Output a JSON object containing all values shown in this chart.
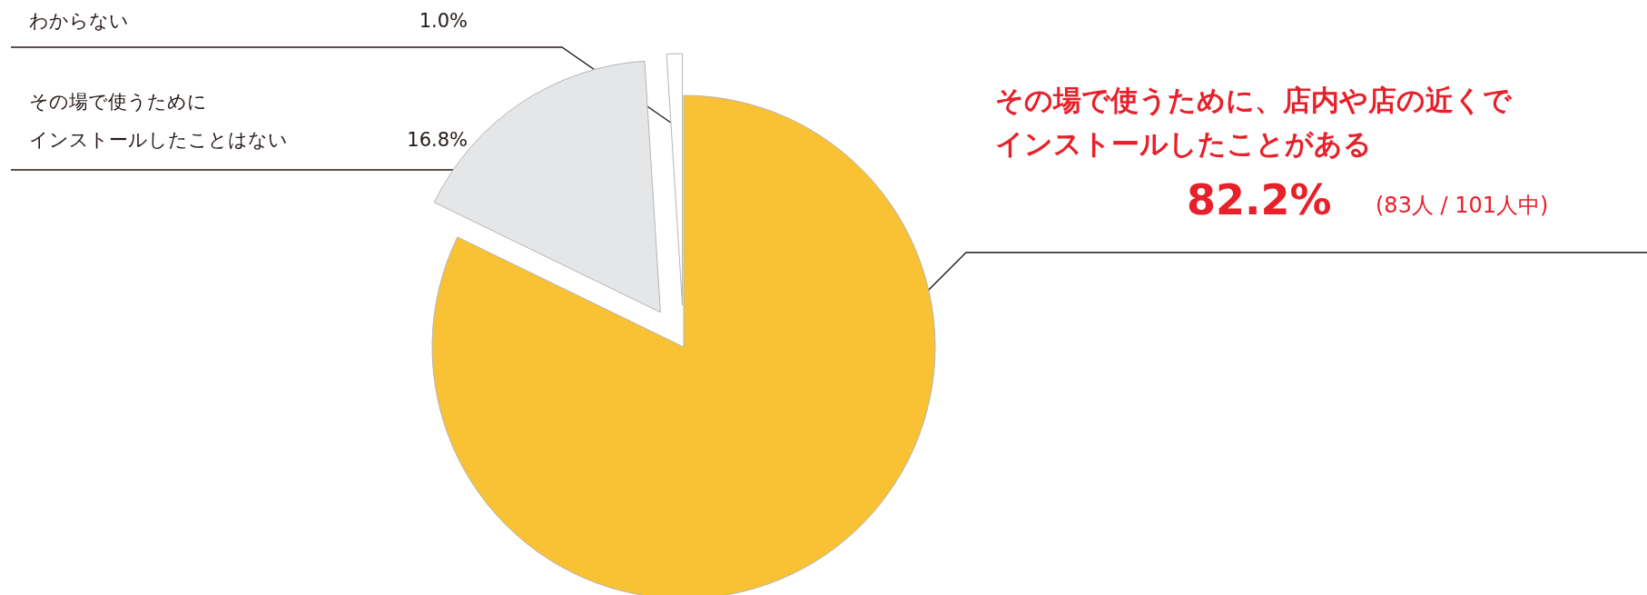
{
  "chart_data": {
    "type": "pie",
    "categories": [
      "その場で使うために、店内や店の近くでインストールしたことがある",
      "その場で使うためにインストールしたことはない",
      "わからない"
    ],
    "values": [
      82.2,
      16.8,
      1.0
    ],
    "value_labels": [
      "82.2%",
      "16.8%",
      "1.0%"
    ],
    "colors": [
      "#f9c134",
      "#e5e6e8",
      "#ffffff"
    ],
    "annotations": [
      "(83人 / 101人中)"
    ],
    "legend": false
  }
}
